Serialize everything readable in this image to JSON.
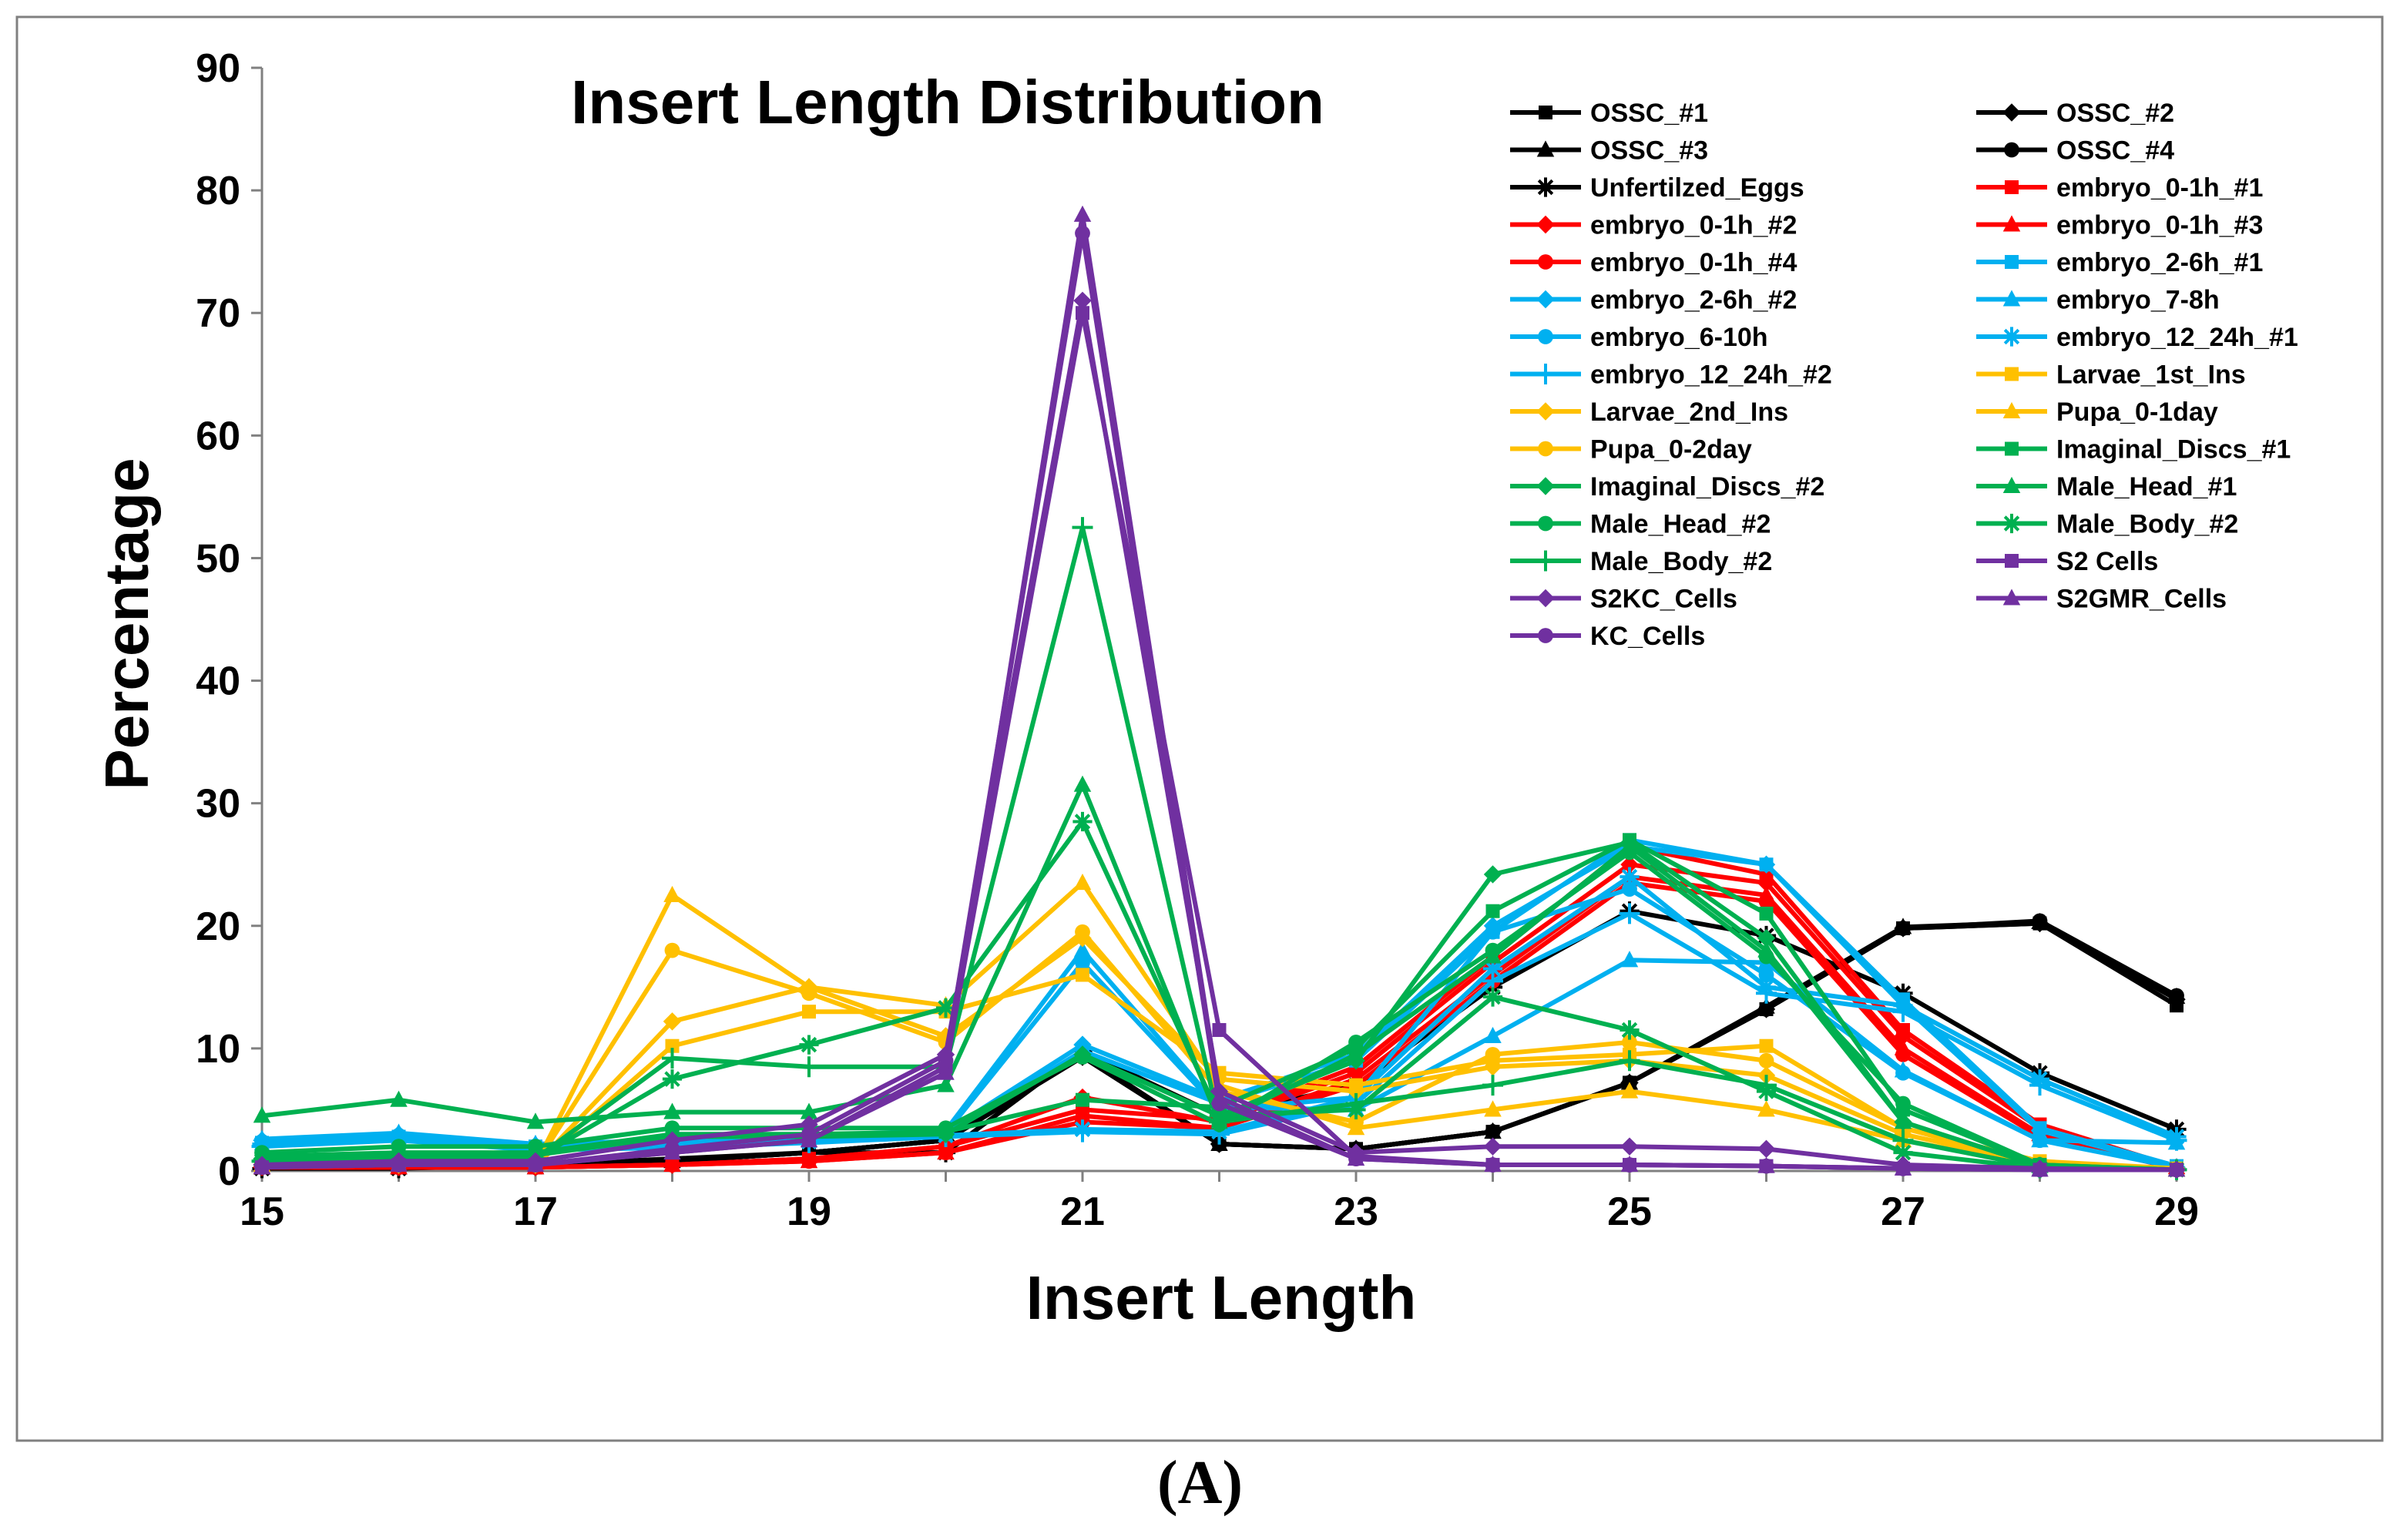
{
  "chart_data": {
    "type": "line",
    "title": "Insert Length Distribution",
    "xlabel": "Insert Length",
    "ylabel": "Percentage",
    "xlim": [
      15,
      29
    ],
    "ylim": [
      0,
      90
    ],
    "x_ticks": [
      15,
      17,
      19,
      21,
      23,
      25,
      27,
      29
    ],
    "y_ticks": [
      0,
      10,
      20,
      30,
      40,
      50,
      60,
      70,
      80,
      90
    ],
    "x": [
      15,
      16,
      17,
      18,
      19,
      20,
      21,
      22,
      23,
      24,
      25,
      26,
      27,
      28,
      29
    ],
    "legend_position": "top-right",
    "series": [
      {
        "name": "OSSC_#1",
        "color": "#000000",
        "marker": "square",
        "values": [
          0.3,
          0.3,
          0.3,
          0.8,
          1.5,
          2.5,
          9.5,
          2.2,
          1.8,
          3.2,
          7.2,
          13.2,
          19.8,
          20.2,
          13.5
        ]
      },
      {
        "name": "OSSC_#2",
        "color": "#000000",
        "marker": "diamond",
        "values": [
          0.3,
          0.3,
          0.3,
          0.8,
          1.5,
          2.5,
          9.3,
          2.2,
          1.8,
          3.2,
          7.2,
          13.2,
          19.8,
          20.2,
          14.0
        ]
      },
      {
        "name": "OSSC_#3",
        "color": "#000000",
        "marker": "triangle",
        "values": [
          0.3,
          0.3,
          0.3,
          0.8,
          1.5,
          2.5,
          9.5,
          2.2,
          1.8,
          3.2,
          7.2,
          13.4,
          19.9,
          20.3,
          14.2
        ]
      },
      {
        "name": "OSSC_#4",
        "color": "#000000",
        "marker": "circle",
        "values": [
          0.3,
          0.3,
          0.3,
          0.8,
          1.5,
          2.5,
          9.3,
          2.2,
          1.8,
          3.2,
          7.2,
          13.2,
          19.8,
          20.4,
          14.3
        ]
      },
      {
        "name": "Unfertilzed_Eggs",
        "color": "#000000",
        "marker": "star",
        "values": [
          0.2,
          0.2,
          0.5,
          1.0,
          1.5,
          1.5,
          9.8,
          4.5,
          7.0,
          15.0,
          21.2,
          19.2,
          14.5,
          8.0,
          3.4
        ]
      },
      {
        "name": "embryo_0-1h_#1",
        "color": "#ff0000",
        "marker": "square",
        "values": [
          0.3,
          0.3,
          0.3,
          0.5,
          1.0,
          2.0,
          5.0,
          4.2,
          8.5,
          17.5,
          26.5,
          24.2,
          11.5,
          3.8,
          0.3
        ]
      },
      {
        "name": "embryo_0-1h_#2",
        "color": "#ff0000",
        "marker": "diamond",
        "values": [
          0.3,
          0.3,
          0.3,
          0.5,
          1.0,
          2.0,
          6.0,
          4.0,
          8.0,
          17.0,
          25.0,
          23.5,
          11.0,
          3.5,
          0.3
        ]
      },
      {
        "name": "embryo_0-1h_#3",
        "color": "#ff0000",
        "marker": "triangle",
        "values": [
          0.3,
          0.3,
          0.3,
          0.5,
          0.8,
          1.5,
          4.5,
          3.5,
          7.5,
          16.0,
          24.0,
          22.5,
          10.0,
          3.0,
          0.3
        ]
      },
      {
        "name": "embryo_0-1h_#4",
        "color": "#ff0000",
        "marker": "circle",
        "values": [
          0.3,
          0.3,
          0.3,
          0.5,
          0.8,
          1.5,
          4.0,
          3.5,
          7.0,
          15.5,
          23.5,
          22.0,
          9.5,
          2.8,
          0.2
        ]
      },
      {
        "name": "embryo_2-6h_#1",
        "color": "#00b0f0",
        "marker": "square",
        "values": [
          2.3,
          2.8,
          2.0,
          2.3,
          2.6,
          3.0,
          9.8,
          5.5,
          9.0,
          19.5,
          27.0,
          25.0,
          14.0,
          3.5,
          0.4
        ]
      },
      {
        "name": "embryo_2-6h_#2",
        "color": "#00b0f0",
        "marker": "diamond",
        "values": [
          2.5,
          3.0,
          2.1,
          2.4,
          2.8,
          3.2,
          10.3,
          5.8,
          9.5,
          20.0,
          26.5,
          25.0,
          13.5,
          3.3,
          0.3
        ]
      },
      {
        "name": "embryo_7-8h",
        "color": "#00b0f0",
        "marker": "triangle",
        "values": [
          2.6,
          3.1,
          2.2,
          2.5,
          2.9,
          3.3,
          18.0,
          5.2,
          5.0,
          11.0,
          17.2,
          17.0,
          8.2,
          2.5,
          2.3
        ]
      },
      {
        "name": "embryo_6-10h",
        "color": "#00b0f0",
        "marker": "circle",
        "values": [
          2.4,
          2.9,
          2.0,
          2.2,
          2.6,
          3.1,
          17.0,
          5.0,
          6.0,
          19.5,
          23.0,
          16.0,
          8.0,
          2.5,
          0.3
        ]
      },
      {
        "name": "embryo_12_24h_#1",
        "color": "#00b0f0",
        "marker": "star",
        "values": [
          2.2,
          2.7,
          1.8,
          2.0,
          2.4,
          2.9,
          3.4,
          3.2,
          6.0,
          16.5,
          24.0,
          15.0,
          13.5,
          7.5,
          2.8
        ]
      },
      {
        "name": "embryo_12_24h_#2",
        "color": "#00b0f0",
        "marker": "plus",
        "values": [
          2.0,
          2.5,
          1.7,
          1.9,
          2.3,
          2.8,
          3.2,
          3.0,
          5.5,
          15.5,
          21.0,
          14.5,
          13.0,
          7.0,
          2.5
        ]
      },
      {
        "name": "Larvae_1st_Ins",
        "color": "#ffc000",
        "marker": "square",
        "values": [
          0.5,
          0.5,
          0.5,
          10.2,
          13.0,
          13.0,
          16.0,
          8.0,
          7.0,
          9.0,
          9.5,
          10.2,
          3.5,
          0.8,
          0.2
        ]
      },
      {
        "name": "Larvae_2nd_Ins",
        "color": "#ffc000",
        "marker": "diamond",
        "values": [
          0.5,
          0.5,
          0.5,
          12.2,
          15.0,
          11.0,
          19.0,
          7.5,
          6.5,
          8.5,
          9.0,
          7.8,
          3.0,
          0.6,
          0.2
        ]
      },
      {
        "name": "Pupa_0-1day",
        "color": "#ffc000",
        "marker": "triangle",
        "values": [
          0.5,
          0.5,
          0.5,
          22.5,
          15.0,
          13.5,
          23.5,
          7.0,
          3.5,
          5.0,
          6.5,
          5.0,
          2.5,
          0.5,
          0.1
        ]
      },
      {
        "name": "Pupa_0-2day",
        "color": "#ffc000",
        "marker": "circle",
        "values": [
          0.5,
          0.5,
          0.5,
          18.0,
          14.5,
          10.5,
          19.5,
          6.5,
          4.0,
          9.5,
          10.5,
          9.0,
          3.5,
          0.6,
          0.1
        ]
      },
      {
        "name": "Imaginal_Discs_#1",
        "color": "#00b050",
        "marker": "square",
        "values": [
          1.2,
          1.5,
          1.5,
          3.0,
          3.0,
          3.2,
          5.8,
          5.2,
          10.0,
          21.2,
          27.0,
          21.0,
          5.0,
          0.5,
          0.1
        ]
      },
      {
        "name": "Imaginal_Discs_#2",
        "color": "#00b050",
        "marker": "diamond",
        "values": [
          1.0,
          1.3,
          1.3,
          2.8,
          2.8,
          3.0,
          9.5,
          4.5,
          9.0,
          24.2,
          26.8,
          19.0,
          4.0,
          0.4,
          0.1
        ]
      },
      {
        "name": "Male_Head_#1",
        "color": "#00b050",
        "marker": "triangle",
        "values": [
          4.5,
          5.8,
          4.0,
          4.8,
          4.8,
          7.0,
          31.5,
          4.0,
          9.5,
          17.5,
          26.5,
          18.0,
          4.0,
          0.4,
          0.1
        ]
      },
      {
        "name": "Male_Head_#2",
        "color": "#00b050",
        "marker": "circle",
        "values": [
          1.5,
          2.0,
          2.0,
          3.5,
          3.5,
          3.5,
          9.3,
          3.8,
          10.5,
          18.0,
          26.0,
          17.5,
          5.5,
          0.5,
          0.1
        ]
      },
      {
        "name": "Male_Body_#2",
        "color": "#00b050",
        "marker": "star",
        "values": [
          0.8,
          1.0,
          1.0,
          7.5,
          10.3,
          13.3,
          28.5,
          4.5,
          5.0,
          14.2,
          11.5,
          6.5,
          1.5,
          0.2,
          0.1
        ]
      },
      {
        "name": "Male_Body_#2",
        "color": "#00b050",
        "marker": "plus",
        "values": [
          0.8,
          1.0,
          1.0,
          9.2,
          8.5,
          8.5,
          52.5,
          4.0,
          5.5,
          7.0,
          9.0,
          7.0,
          2.5,
          0.3,
          0.1
        ]
      },
      {
        "name": "S2 Cells",
        "color": "#7030a0",
        "marker": "square",
        "values": [
          0.3,
          0.5,
          0.5,
          1.5,
          2.5,
          8.5,
          70.0,
          11.5,
          1.2,
          0.5,
          0.5,
          0.4,
          0.2,
          0.1,
          0.1
        ]
      },
      {
        "name": "S2KC_Cells",
        "color": "#7030a0",
        "marker": "diamond",
        "values": [
          0.5,
          0.8,
          0.8,
          2.5,
          3.8,
          9.5,
          71.0,
          6.5,
          1.5,
          2.0,
          2.0,
          1.8,
          0.5,
          0.2,
          0.1
        ]
      },
      {
        "name": "S2GMR_Cells",
        "color": "#7030a0",
        "marker": "triangle",
        "values": [
          0.3,
          0.5,
          0.5,
          1.5,
          2.5,
          8.0,
          78.0,
          6.0,
          1.0,
          0.5,
          0.5,
          0.4,
          0.2,
          0.1,
          0.1
        ]
      },
      {
        "name": "KC_Cells",
        "color": "#7030a0",
        "marker": "circle",
        "values": [
          0.3,
          0.5,
          0.5,
          1.8,
          3.0,
          9.0,
          76.5,
          5.5,
          1.0,
          0.5,
          0.5,
          0.4,
          0.2,
          0.1,
          0.1
        ]
      }
    ]
  },
  "panel_label": "(A)"
}
